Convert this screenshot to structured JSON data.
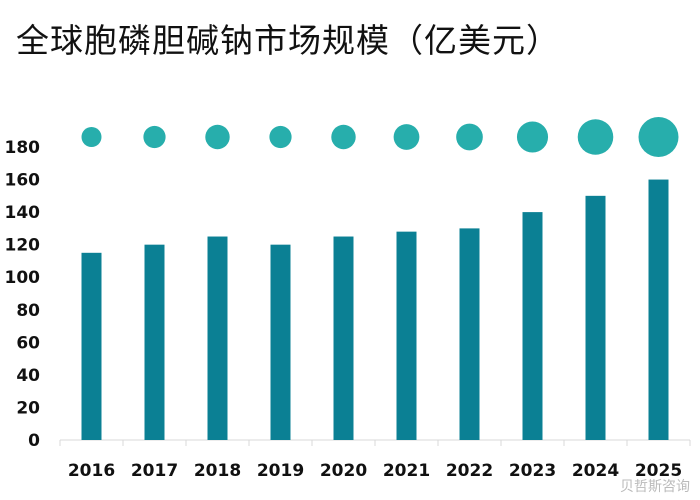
{
  "chart_data": {
    "type": "bar",
    "title": "全球胞磷胆碱钠市场规模（亿美元）",
    "categories": [
      "2016",
      "2017",
      "2018",
      "2019",
      "2020",
      "2021",
      "2022",
      "2023",
      "2024",
      "2025"
    ],
    "values": [
      115,
      120,
      125,
      120,
      125,
      128,
      130,
      140,
      150,
      160
    ],
    "ylim": [
      0,
      180
    ],
    "yticks": [
      0,
      20,
      40,
      60,
      80,
      100,
      120,
      140,
      160,
      180
    ],
    "grid": false,
    "bar_color": "#0b8094",
    "bubble_color": "#27aeac"
  },
  "watermark": "贝哲斯咨询"
}
